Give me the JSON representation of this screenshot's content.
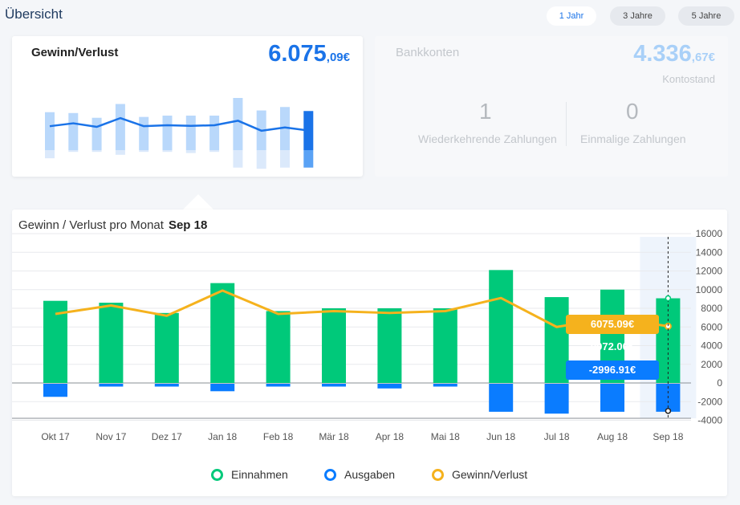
{
  "header": {
    "title": "Übersicht",
    "ranges": [
      "1 Jahr",
      "3 Jahre",
      "5 Jahre"
    ],
    "active_range": "1 Jahr"
  },
  "profit_card": {
    "label": "Gewinn/Verlust",
    "amount_main": "6.075",
    "amount_decimals": ",09€"
  },
  "bank_card": {
    "label": "Bankkonten",
    "amount_main": "4.336",
    "amount_decimals": ",67€",
    "sub_label": "Kontostand",
    "recurring_count": "1",
    "recurring_label": "Wiederkehrende Zahlungen",
    "onetime_count": "0",
    "onetime_label": "Einmalige Zahlungen"
  },
  "main_chart": {
    "title": "Gewinn / Verlust pro Monat",
    "selected_month": "Sep 18",
    "tooltip": {
      "profit": "6075.09€",
      "income": "9072.00€",
      "expense": "-2996.91€"
    }
  },
  "colors": {
    "income": "#00c97a",
    "expense": "#0a7cff",
    "profit": "#f5b21d",
    "accent": "#1a73e8"
  },
  "chart_data": [
    {
      "type": "bar",
      "title": "Gewinn / Verlust pro Monat",
      "categories": [
        "Okt 17",
        "Nov 17",
        "Dez 17",
        "Jan 18",
        "Feb 18",
        "Mär 18",
        "Apr 18",
        "Mai 18",
        "Jun 18",
        "Jul 18",
        "Aug 18",
        "Sep 18"
      ],
      "series": [
        {
          "name": "Einnahmen",
          "type": "bar",
          "values": [
            8800,
            8600,
            7500,
            10700,
            7700,
            8000,
            8000,
            8000,
            12100,
            9200,
            10000,
            9072
          ]
        },
        {
          "name": "Ausgaben",
          "type": "bar",
          "values": [
            -1400,
            -300,
            -300,
            -800,
            -300,
            -300,
            -500,
            -300,
            -3000,
            -3200,
            -3000,
            -2996.91
          ]
        },
        {
          "name": "Gewinn/Verlust",
          "type": "line",
          "values": [
            7400,
            8300,
            7200,
            9900,
            7400,
            7700,
            7500,
            7700,
            9100,
            6000,
            7000,
            6075.09
          ]
        }
      ],
      "yticks": [
        16000,
        14000,
        12000,
        10000,
        8000,
        6000,
        4000,
        2000,
        0,
        -2000,
        -4000
      ],
      "ylim": [
        -4000,
        16000
      ],
      "legend": "bottom",
      "grid": true
    },
    {
      "type": "bar",
      "title": "Gewinn/Verlust",
      "categories": [
        "Okt 17",
        "Nov 17",
        "Dez 17",
        "Jan 18",
        "Feb 18",
        "Mär 18",
        "Apr 18",
        "Mai 18",
        "Jun 18",
        "Jul 18",
        "Aug 18",
        "Sep 18"
      ],
      "series": [
        {
          "name": "Einnahmen",
          "type": "bar",
          "values": [
            8800,
            8600,
            7500,
            10700,
            7700,
            8000,
            8000,
            8000,
            12100,
            9200,
            10000,
            9072
          ]
        },
        {
          "name": "Ausgaben",
          "type": "bar",
          "values": [
            -1400,
            -300,
            -300,
            -800,
            -300,
            -300,
            -500,
            -300,
            -3000,
            -3200,
            -3000,
            -2996.91
          ]
        },
        {
          "name": "Gewinn/Verlust",
          "type": "line",
          "values": [
            7400,
            8300,
            7200,
            9900,
            7400,
            7700,
            7500,
            7700,
            9100,
            6000,
            7000,
            6075.09
          ]
        }
      ]
    }
  ]
}
